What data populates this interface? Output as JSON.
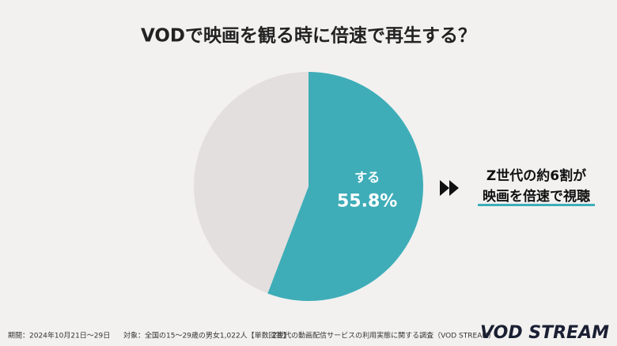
{
  "chart_data": {
    "type": "pie",
    "title": "VODで映画を観る時に倍速で再生する？",
    "categories": [
      "する",
      null
    ],
    "values": [
      55.8,
      44.2
    ],
    "value_labels": [
      "55.8%",
      null
    ],
    "colors": [
      "#3eadb8",
      "#e3dfde"
    ],
    "annotation": [
      "Z世代の約6割が",
      "映画を倍速で視聴"
    ],
    "footnotes": [
      "期間：2024年10月21日〜29日",
      "対象：全国の15〜29歳の男女1,022人【単数回答】",
      "Z世代の動画配信サービスの利用実態に関する調査（VOD STREAM）"
    ],
    "logo": "VOD STREAM"
  }
}
